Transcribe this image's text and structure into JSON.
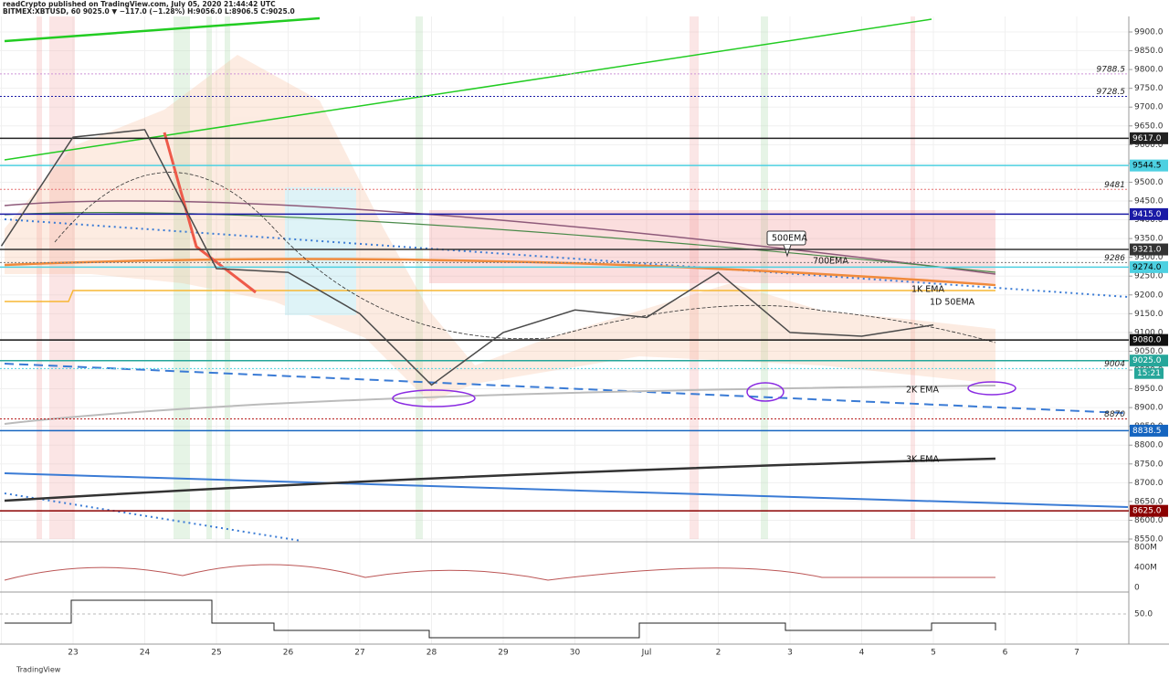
{
  "chart_data": {
    "type": "line",
    "title": "readCrypto published on TradingView.com, July 05, 2020 21:44:42 UTC",
    "subtitle": "BITMEX:XBTUSD, 60  9025.0 ▼ −117.0 (−1.28%) H:9056.0 L:8906.5 C:9025.0",
    "categories": [
      null,
      "23",
      "24",
      "25",
      "26",
      "27",
      "28",
      "29",
      "30",
      "Jul",
      "2",
      "3",
      "4",
      "5",
      "6",
      "7"
    ],
    "series": [
      {
        "name": "XBTUSD",
        "color": "#4a4a4a",
        "values": [
          9330,
          9620,
          9640,
          9270,
          9260,
          9150,
          8960,
          9100,
          9160,
          9140,
          9260,
          9100,
          9090,
          9120,
          null,
          null
        ]
      }
    ],
    "ylim": [
      8550,
      9900
    ],
    "yticks": [
      {
        "value": 9900,
        "label": "9900.0"
      },
      {
        "value": 9850,
        "label": "9850.0"
      },
      {
        "value": 9800,
        "label": "9800.0"
      },
      {
        "value": 9750,
        "label": "9750.0"
      },
      {
        "value": 9700,
        "label": "9700.0"
      },
      {
        "value": 9650,
        "label": "9650.0"
      },
      {
        "value": 9600,
        "label": "9600.0"
      },
      {
        "value": 9550,
        "label": "9550.0"
      },
      {
        "value": 9500,
        "label": "9500.0"
      },
      {
        "value": 9450,
        "label": "9450.0"
      },
      {
        "value": 9400,
        "label": "9400.0"
      },
      {
        "value": 9350,
        "label": "9350.0"
      },
      {
        "value": 9300,
        "label": "9300.0"
      },
      {
        "value": 9250,
        "label": "9250.0"
      },
      {
        "value": 9200,
        "label": "9200.0"
      },
      {
        "value": 9150,
        "label": "9150.0"
      },
      {
        "value": 9100,
        "label": "9100.0"
      },
      {
        "value": 9050,
        "label": "9050.0"
      },
      {
        "value": 9000,
        "label": "9000.0"
      },
      {
        "value": 8950,
        "label": "8950.0"
      },
      {
        "value": 8900,
        "label": "8900.0"
      },
      {
        "value": 8850,
        "label": "8850.0"
      },
      {
        "value": 8800,
        "label": "8800.0"
      },
      {
        "value": 8750,
        "label": "8750.0"
      },
      {
        "value": 8700,
        "label": "8700.0"
      },
      {
        "value": 8650,
        "label": "8650.0"
      },
      {
        "value": 8600,
        "label": "8600.0"
      },
      {
        "value": 8550,
        "label": "8550.0"
      }
    ],
    "grid": true,
    "levels": [
      {
        "value": 9788.5,
        "label": "9788.5",
        "color": "#ce93d8",
        "style": "text"
      },
      {
        "value": 9728.5,
        "label": "9728.5",
        "color": "#1a1aa6",
        "style": "text"
      },
      {
        "value": 9617,
        "label": "9617.0",
        "color": "#222222",
        "style": "box"
      },
      {
        "value": 9544.5,
        "label": "9544.5",
        "color": "#4dd0e1",
        "style": "box"
      },
      {
        "value": 9481,
        "label": "9481",
        "color": "#e57373",
        "style": "text"
      },
      {
        "value": 9415,
        "label": "9415.0",
        "color": "#1a1aa6",
        "style": "box"
      },
      {
        "value": 9321,
        "label": "9321.0",
        "color": "#333333",
        "style": "box"
      },
      {
        "value": 9286,
        "label": "9286",
        "color": "#777777",
        "style": "text"
      },
      {
        "value": 9274,
        "label": "9274.0",
        "color": "#4dd0e1",
        "style": "box"
      },
      {
        "value": 9080,
        "label": "9080.0",
        "color": "#111111",
        "style": "box"
      },
      {
        "value": 9025,
        "label": "9025.0",
        "color": "#26a69a",
        "style": "box"
      },
      {
        "value": 9004,
        "label": "9004",
        "color": "#4dd0e1",
        "style": "text"
      },
      {
        "value": 8870,
        "label": "8870",
        "color": "#b71c1c",
        "style": "text"
      },
      {
        "value": 8838.5,
        "label": "8838.5",
        "color": "#1565c0",
        "style": "box"
      },
      {
        "value": 8625,
        "label": "8625.0",
        "color": "#8b0000",
        "style": "box"
      }
    ],
    "countdown": "15:21",
    "annotations": [
      "500EMA",
      "700EMA",
      "1K EMA",
      "1D 50EMA",
      "2K EMA",
      "3K EMA"
    ],
    "volume_ticks": [
      "800M",
      "400M",
      "0"
    ],
    "indicator_tick": "50.0",
    "brand": "TradingView"
  }
}
